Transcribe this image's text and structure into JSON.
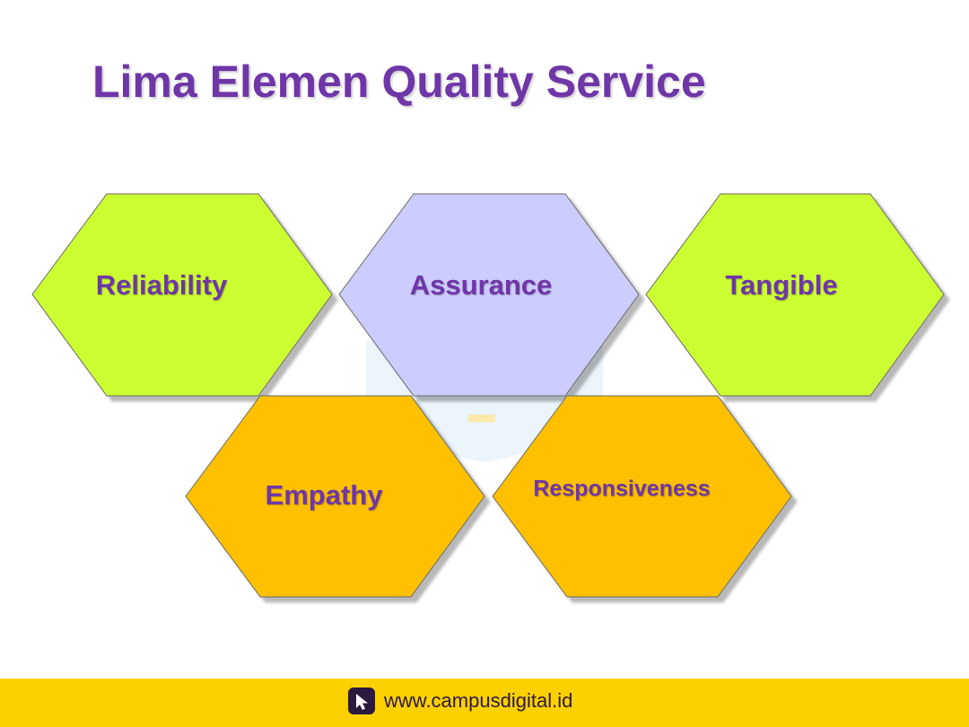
{
  "title": "Lima Elemen Quality Service",
  "elements": [
    {
      "label": "Reliability",
      "color": "#ccff33"
    },
    {
      "label": "Assurance",
      "color": "#ccccff"
    },
    {
      "label": "Tangible",
      "color": "#ccff33"
    },
    {
      "label": "Empathy",
      "color": "#ffc000"
    },
    {
      "label": "Responsiveness",
      "color": "#ffc000"
    }
  ],
  "footer": {
    "icon": "cursor-arrow-icon",
    "url": "www.campusdigital.id",
    "background": "#fdd000"
  },
  "accent_color": "#6f36a8"
}
